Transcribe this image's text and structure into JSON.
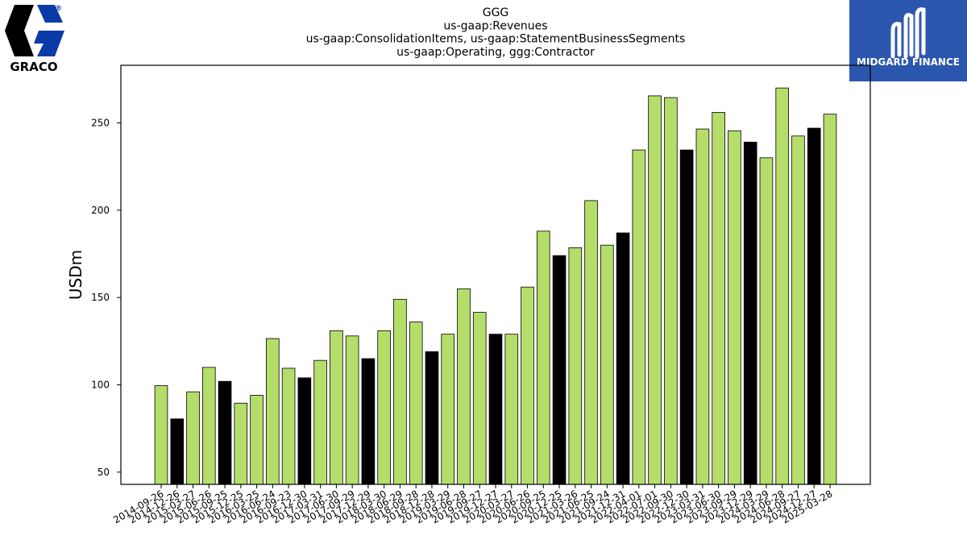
{
  "branding": {
    "company_logo_text": "GRACO",
    "registered_mark": "®",
    "partner_logo_text": "MIDGARD FINANCE"
  },
  "colors": {
    "bar_default": "#b5dd6a",
    "bar_highlight": "#000000",
    "bar_stroke": "#000000",
    "graco_blue": "#0a3aa8",
    "midgard_blue": "#2b56ad"
  },
  "chart_data": {
    "type": "bar",
    "title": [
      "GGG",
      "us-gaap:Revenues",
      "us-gaap:ConsolidationItems, us-gaap:StatementBusinessSegments",
      "us-gaap:Operating, ggg:Contractor"
    ],
    "xlabel": "",
    "ylabel": "USDm",
    "ylim": [
      43,
      283
    ],
    "yticks": [
      50,
      100,
      150,
      200,
      250
    ],
    "grid": false,
    "categories": [
      "2014-09-26",
      "2014-12-26",
      "2015-03-27",
      "2015-06-26",
      "2015-09-25",
      "2015-12-25",
      "2016-03-25",
      "2016-06-24",
      "2016-09-23",
      "2016-12-30",
      "2017-03-31",
      "2017-06-30",
      "2017-09-29",
      "2017-12-29",
      "2018-03-30",
      "2018-06-29",
      "2018-09-28",
      "2018-12-28",
      "2019-03-29",
      "2019-06-28",
      "2019-09-27",
      "2019-12-27",
      "2020-03-27",
      "2020-06-26",
      "2020-09-25",
      "2020-12-25",
      "2021-03-26",
      "2021-06-25",
      "2021-09-24",
      "2021-12-31",
      "2022-04-01",
      "2022-07-01",
      "2022-09-30",
      "2022-12-30",
      "2023-03-31",
      "2023-06-30",
      "2023-09-29",
      "2023-12-29",
      "2024-03-29",
      "2024-06-28",
      "2024-09-27",
      "2024-12-27",
      "2025-03-28"
    ],
    "values": [
      99.5,
      80.5,
      96,
      110,
      102,
      89.5,
      94,
      126.5,
      109.5,
      104,
      114,
      131,
      128,
      115,
      131,
      149,
      136,
      119,
      129,
      155,
      141.5,
      129,
      129,
      156,
      188,
      174,
      178.5,
      205.5,
      180,
      187,
      234.5,
      265.5,
      264.5,
      234.5,
      246.5,
      256,
      245.5,
      239,
      230,
      270,
      242.5,
      247,
      255
    ],
    "highlight": [
      false,
      true,
      false,
      false,
      true,
      false,
      false,
      false,
      false,
      true,
      false,
      false,
      false,
      true,
      false,
      false,
      false,
      true,
      false,
      false,
      false,
      true,
      false,
      false,
      false,
      true,
      false,
      false,
      false,
      true,
      false,
      false,
      false,
      true,
      false,
      false,
      false,
      true,
      false,
      false,
      false,
      true,
      false
    ]
  }
}
